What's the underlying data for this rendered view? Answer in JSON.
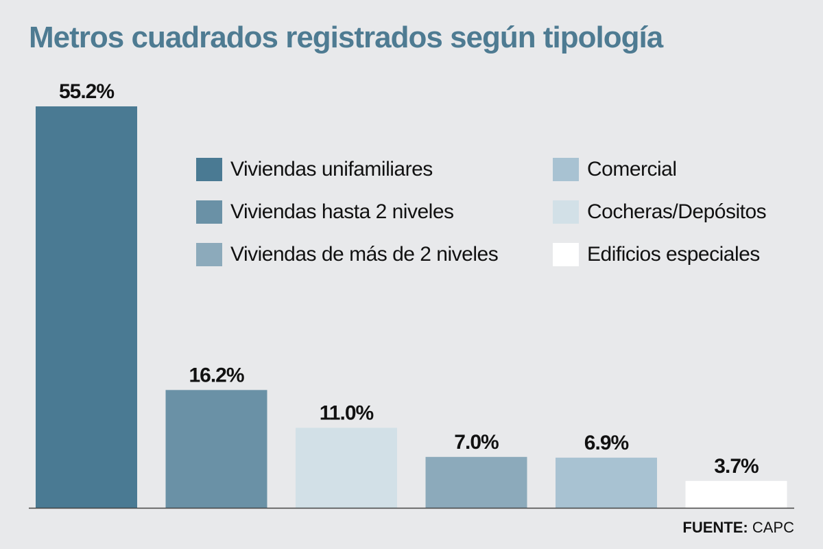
{
  "title": "Metros cuadrados registrados según tipología",
  "source": {
    "label": "FUENTE:",
    "value": "CAPC"
  },
  "legend": [
    {
      "label": "Viviendas unifamiliares",
      "color": "#4a7a93"
    },
    {
      "label": "Comercial",
      "color": "#a8c2d2"
    },
    {
      "label": "Viviendas hasta 2 niveles",
      "color": "#6a91a6"
    },
    {
      "label": "Cocheras/Depósitos",
      "color": "#d2e0e7"
    },
    {
      "label": "Viviendas de más de 2 niveles",
      "color": "#8caabb"
    },
    {
      "label": "Edificios especiales",
      "color": "#ffffff"
    }
  ],
  "chart_data": {
    "type": "bar",
    "categories": [
      "Viviendas unifamiliares",
      "Viviendas hasta 2 niveles",
      "Cocheras/Depósitos",
      "Viviendas de más de 2 niveles",
      "Comercial",
      "Edificios especiales"
    ],
    "values": [
      55.2,
      16.2,
      11.0,
      7.0,
      6.9,
      3.7
    ],
    "labels": [
      "55.2%",
      "16.2%",
      "11.0%",
      "7.0%",
      "6.9%",
      "3.7%"
    ],
    "colors": [
      "#4a7a93",
      "#6a91a6",
      "#d2e0e7",
      "#8caabb",
      "#a8c2d2",
      "#ffffff"
    ],
    "ylim": [
      0,
      55.2
    ],
    "grid": false,
    "legend_position": "top-right"
  }
}
